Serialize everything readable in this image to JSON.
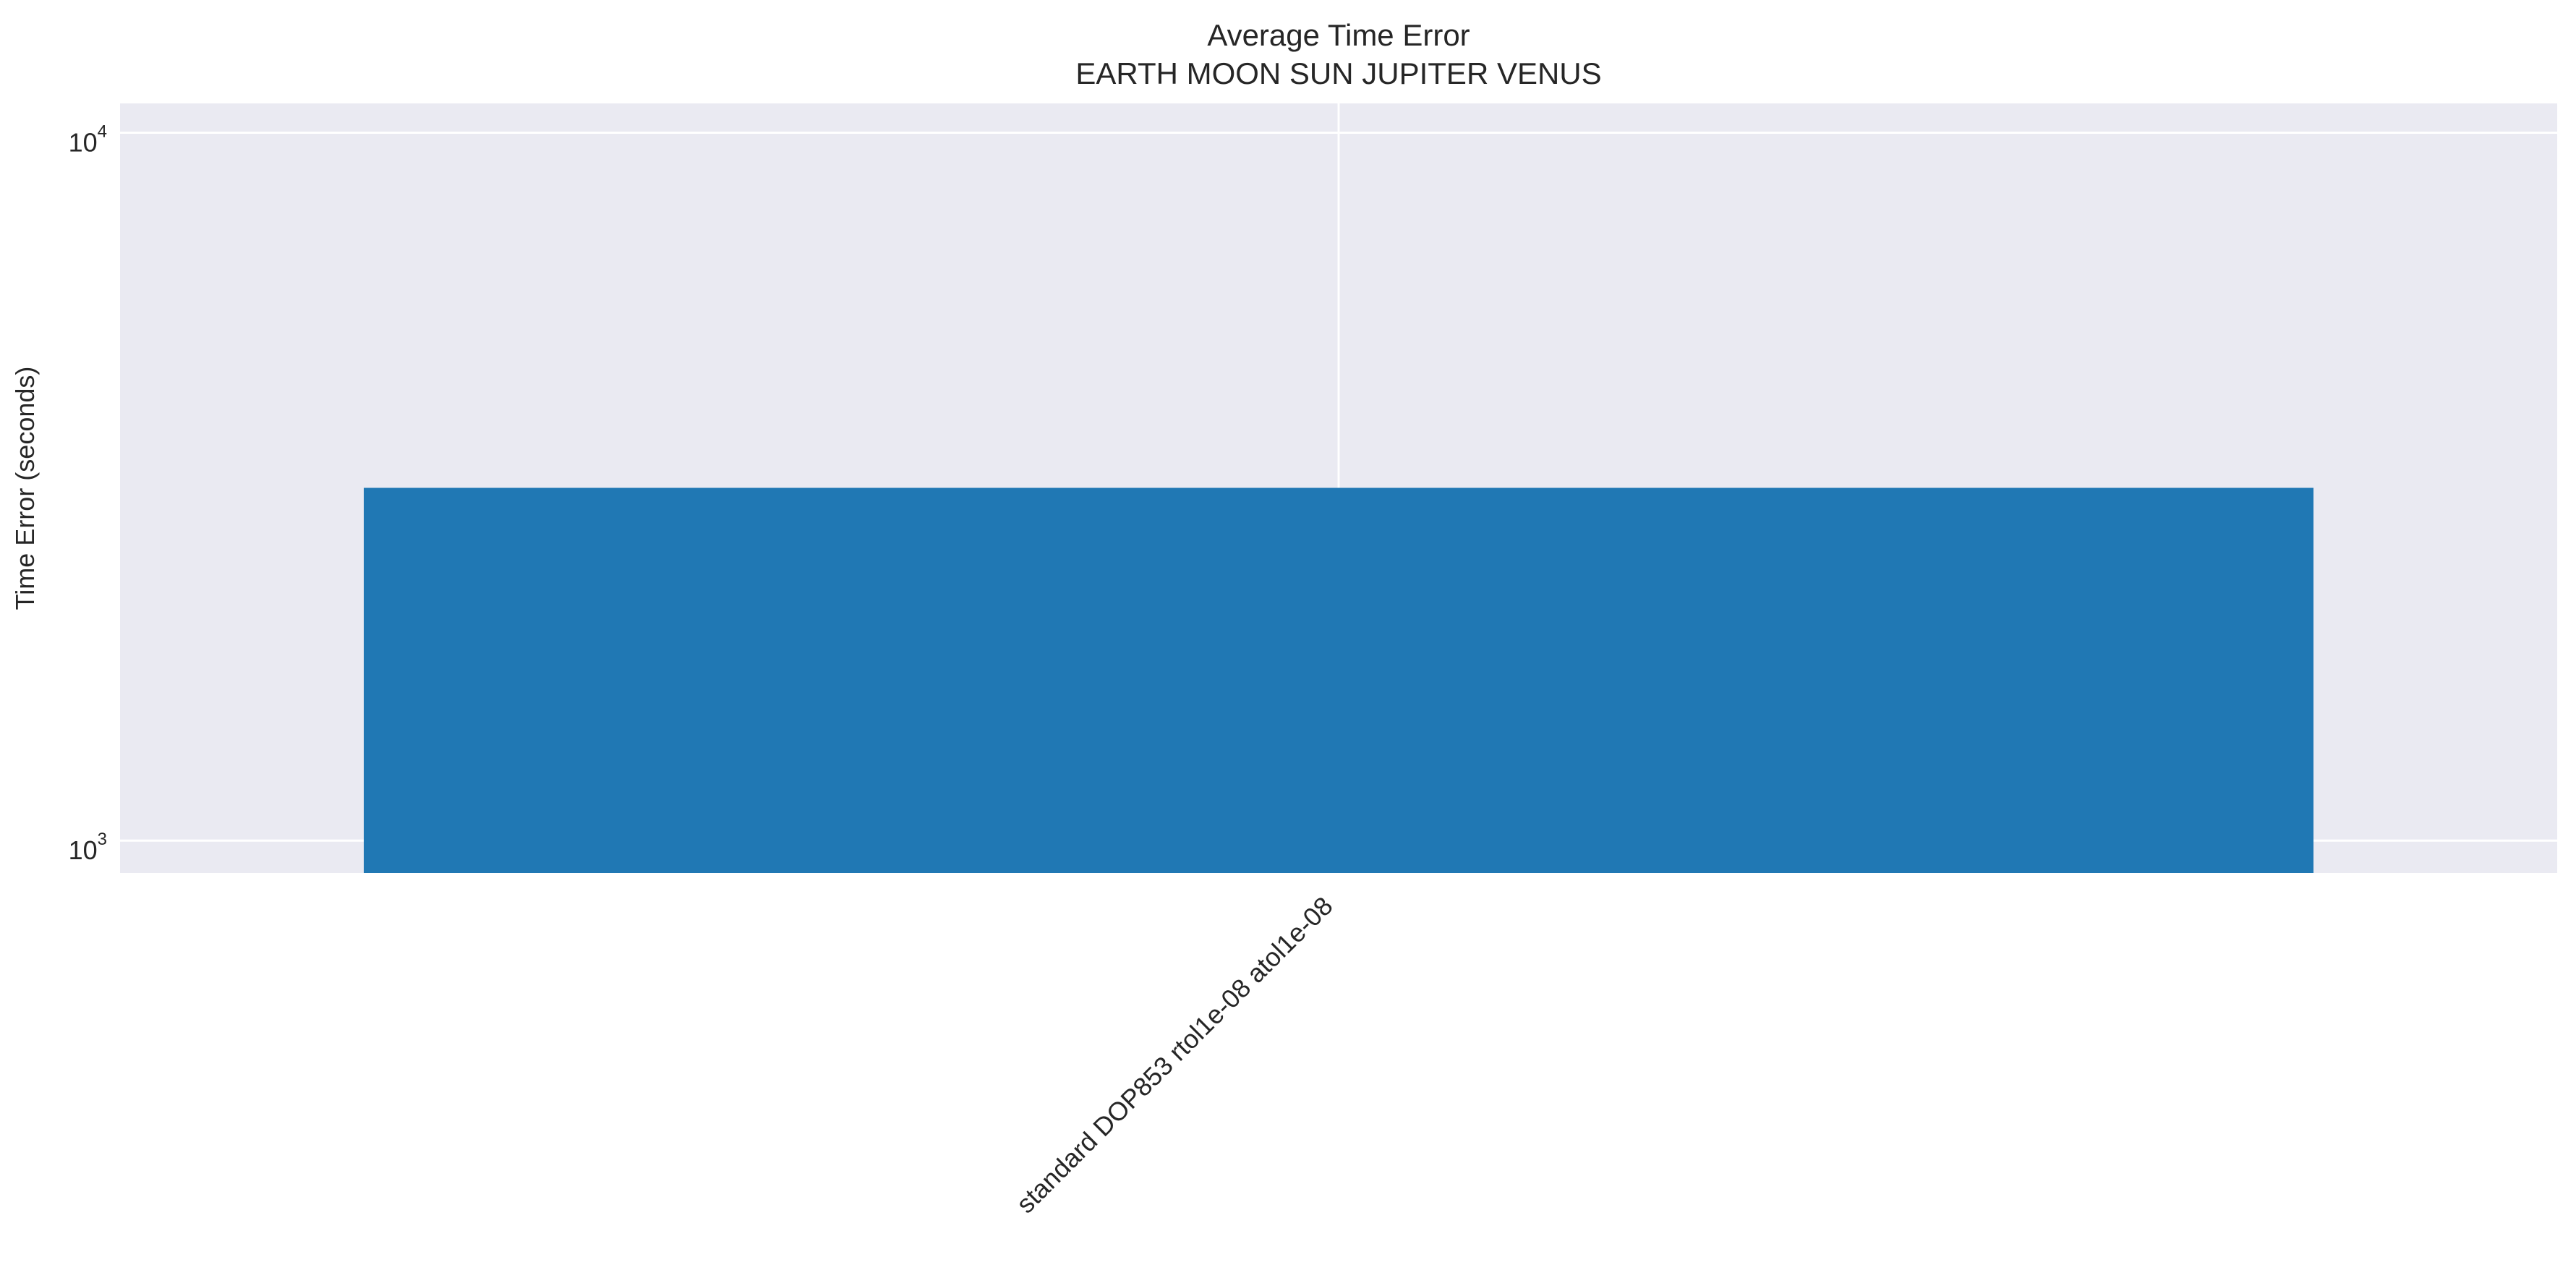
{
  "chart_data": {
    "type": "bar",
    "title": "Average Time Error",
    "subtitle": "EARTH MOON SUN JUPITER VENUS",
    "xlabel": "",
    "ylabel": "Time Error (seconds)",
    "yscale": "log",
    "ylim": [
      900,
      11000
    ],
    "yticks": [
      {
        "value": 1000,
        "base": "10",
        "exponent": "3"
      },
      {
        "value": 10000,
        "base": "10",
        "exponent": "4"
      }
    ],
    "categories": [
      "standard DOP853 rtol1e-08 atol1e-08"
    ],
    "values": [
      3150
    ],
    "bar_color": "#2078b4",
    "plot_background": "#eaeaf2",
    "grid_color": "#ffffff",
    "grid": true
  }
}
